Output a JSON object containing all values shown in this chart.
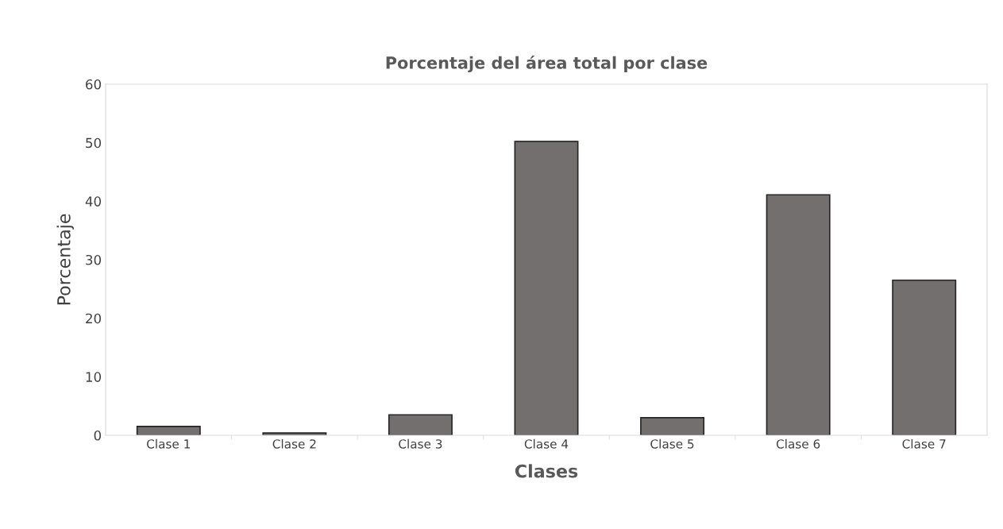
{
  "chart_data": {
    "type": "bar",
    "title": "Porcentaje del área total por clase",
    "xlabel": "Clases",
    "ylabel": "Porcentaje",
    "categories": [
      "Clase 1",
      "Clase 2",
      "Clase 3",
      "Clase 4",
      "Clase 5",
      "Clase 6",
      "Clase 7"
    ],
    "values": [
      1.5,
      0.4,
      3.5,
      50.2,
      3.0,
      41.1,
      26.5
    ],
    "color": "#736f6e",
    "ylim": [
      0,
      60
    ],
    "yticks": [
      0,
      10,
      20,
      30,
      40,
      50,
      60
    ],
    "grid": false
  }
}
